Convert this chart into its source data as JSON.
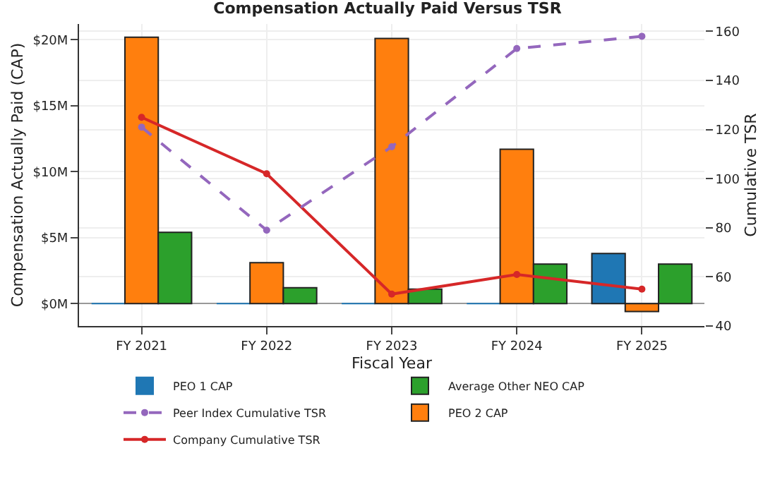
{
  "chart_data": {
    "type": "bar",
    "title": "Compensation Actually Paid Versus TSR",
    "xlabel": "Fiscal Year",
    "ylabel": "Compensation Actually Paid (CAP)",
    "y2label": "Cumulative TSR",
    "categories": [
      "FY 2021",
      "FY 2022",
      "FY 2023",
      "FY 2024",
      "FY 2025"
    ],
    "series": [
      {
        "name": "PEO 1 CAP",
        "color": "#1f77b4",
        "values": [
          0,
          0,
          0,
          0,
          3.8
        ]
      },
      {
        "name": "PEO 2 CAP",
        "color": "#ff7f0e",
        "values": [
          20.2,
          3.1,
          20.1,
          11.7,
          -0.6
        ]
      },
      {
        "name": "Average Other NEO CAP",
        "color": "#2ca02c",
        "values": [
          5.4,
          1.2,
          1.1,
          3.0,
          3.0
        ]
      },
      {
        "name": "Company Cumulative TSR",
        "color": "#d62728",
        "type": "line",
        "axis": "y2",
        "marker": "circle",
        "line_style": "solid",
        "values": [
          125,
          102,
          53,
          61,
          55
        ]
      },
      {
        "name": "Peer Index Cumulative TSR",
        "color": "#9467bd",
        "type": "line",
        "axis": "y2",
        "marker": "circle",
        "line_style": "dashed",
        "values": [
          121,
          79,
          113,
          153,
          158
        ]
      }
    ],
    "ylim": [
      -1.7,
      21.2
    ],
    "yticks": [
      {
        "value": 0,
        "label": "$0M"
      },
      {
        "value": 5,
        "label": "$5M"
      },
      {
        "value": 10,
        "label": "$10M"
      },
      {
        "value": 15,
        "label": "$15M"
      },
      {
        "value": 20,
        "label": "$20M"
      }
    ],
    "y2lim": [
      40,
      163
    ],
    "y2ticks": [
      40,
      60,
      80,
      100,
      120,
      140,
      160
    ],
    "grid": true,
    "legend": "bottom"
  }
}
